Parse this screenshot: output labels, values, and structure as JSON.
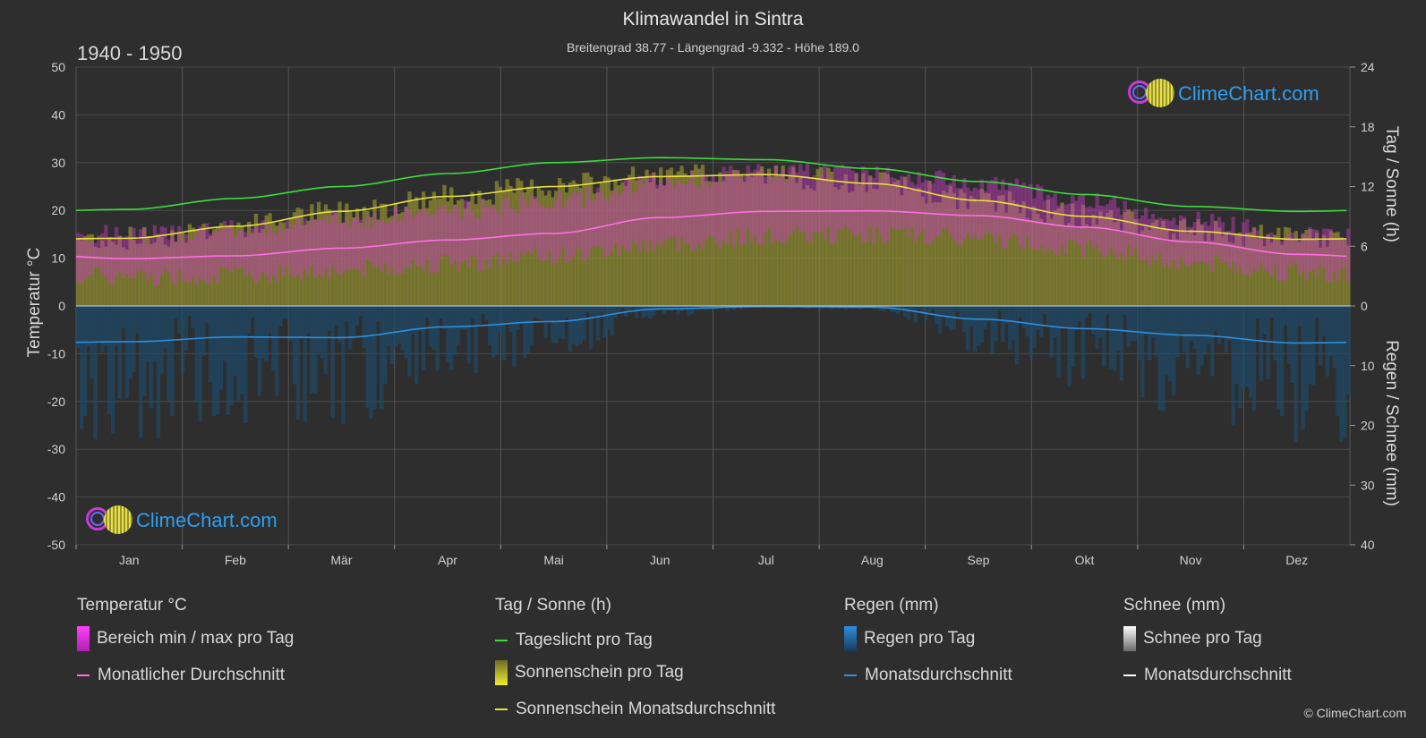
{
  "header": {
    "title": "Klimawandel in Sintra",
    "subtitle": "Breitengrad 38.77 - Längengrad -9.332 - Höhe 189.0",
    "period": "1940 - 1950"
  },
  "axes": {
    "left_label": "Temperatur °C",
    "right_top_label": "Tag / Sonne (h)",
    "right_bottom_label": "Regen / Schnee (mm)",
    "left_ticks": [
      "50",
      "40",
      "30",
      "20",
      "10",
      "0",
      "-10",
      "-20",
      "-30",
      "-40",
      "-50"
    ],
    "right_top_ticks": [
      "24",
      "18",
      "12",
      "6",
      "0"
    ],
    "right_bottom_ticks": [
      "10",
      "20",
      "30",
      "40"
    ]
  },
  "logo": {
    "text": "ClimeChart.com"
  },
  "copyright": "© ClimeChart.com",
  "legend": {
    "temp_head": "Temperatur °C",
    "temp_range": "Bereich min / max pro Tag",
    "temp_avg": "Monatlicher Durchschnitt",
    "sun_head": "Tag / Sonne (h)",
    "daylight": "Tageslicht pro Tag",
    "sun_day": "Sonnenschein pro Tag",
    "sun_avg": "Sonnenschein Monatsdurchschnitt",
    "rain_head": "Regen (mm)",
    "rain_day": "Regen pro Tag",
    "rain_avg": "Monatsdurchschnitt",
    "snow_head": "Schnee (mm)",
    "snow_day": "Schnee pro Tag",
    "snow_avg": "Monatsdurchschnitt"
  },
  "colors": {
    "daylight": "#3ddc3d",
    "sunshine_line": "#e6e23a",
    "sunshine_fill": "#8c8a30",
    "temp_range": "#c83cc0",
    "temp_avg": "#ff6ee6",
    "rain": "#2e8fe0",
    "rain_fill": "#1e4a6a",
    "snow": "#ffffff"
  },
  "chart_data": {
    "type": "line",
    "categories": [
      "Jan",
      "Feb",
      "Mär",
      "Apr",
      "Mai",
      "Jun",
      "Jul",
      "Aug",
      "Sep",
      "Okt",
      "Nov",
      "Dez"
    ],
    "ylim_temp": [
      -50,
      50
    ],
    "ylim_sun_hours": [
      0,
      24
    ],
    "ylim_rain_mm": [
      0,
      40
    ],
    "series": [
      {
        "name": "Tageslicht pro Tag",
        "axis": "hours",
        "values": [
          9.7,
          10.8,
          12.0,
          13.3,
          14.4,
          14.9,
          14.7,
          13.8,
          12.5,
          11.2,
          10.0,
          9.5
        ]
      },
      {
        "name": "Sonnenschein Monatsdurchschnitt",
        "axis": "hours",
        "values": [
          6.8,
          8.0,
          9.5,
          11.0,
          12.0,
          13.0,
          13.2,
          12.3,
          10.6,
          9.0,
          7.5,
          6.7
        ]
      },
      {
        "name": "Monatlicher Durchschnitt",
        "axis": "temp",
        "values": [
          9.9,
          10.5,
          12.1,
          13.8,
          15.2,
          18.5,
          19.8,
          19.9,
          18.9,
          16.5,
          13.4,
          10.8
        ]
      },
      {
        "name": "Temperatur max",
        "axis": "temp",
        "values": [
          15,
          16,
          18,
          20,
          22,
          26,
          28,
          28,
          26,
          22,
          18,
          15
        ]
      },
      {
        "name": "Temperatur min",
        "axis": "temp",
        "values": [
          6,
          6.5,
          7.5,
          9,
          10.5,
          13,
          14.5,
          15,
          14,
          12,
          9,
          7
        ]
      },
      {
        "name": "Regen Monatsdurchschnitt",
        "axis": "rain",
        "values": [
          6.0,
          5.2,
          5.3,
          3.5,
          2.6,
          0.5,
          0.1,
          0.2,
          2.2,
          3.8,
          4.9,
          6.2
        ]
      },
      {
        "name": "Schnee Monatsdurchschnitt",
        "axis": "rain",
        "values": [
          0,
          0,
          0,
          0,
          0,
          0,
          0,
          0,
          0,
          0,
          0,
          0
        ]
      }
    ]
  }
}
